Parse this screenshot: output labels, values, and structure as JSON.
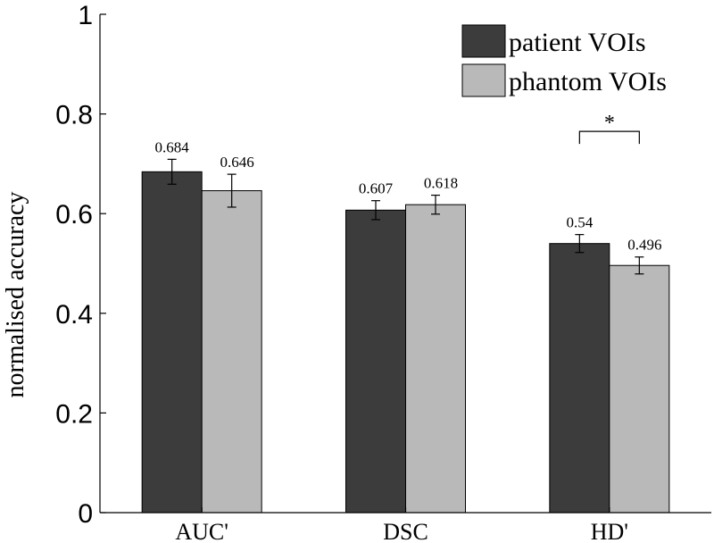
{
  "chart_data": {
    "type": "bar",
    "title": "",
    "xlabel": "",
    "ylabel": "normalised accuracy",
    "ylim": [
      0,
      1
    ],
    "yticks": [
      0,
      0.2,
      0.4,
      0.6,
      0.8,
      1
    ],
    "ytick_labels": [
      "0",
      "0.2",
      "0.4",
      "0.6",
      "0.8",
      "1"
    ],
    "categories": [
      "AUC'",
      "DSC",
      "HD'"
    ],
    "series": [
      {
        "name": "patient VOIs",
        "color": "#3c3c3c",
        "values": [
          0.684,
          0.607,
          0.54
        ],
        "value_labels": [
          "0.684",
          "0.607",
          "0.54"
        ],
        "errors": [
          0.025,
          0.019,
          0.018
        ]
      },
      {
        "name": "phantom VOIs",
        "color": "#b9b9b9",
        "values": [
          0.646,
          0.618,
          0.496
        ],
        "value_labels": [
          "0.646",
          "0.618",
          "0.496"
        ],
        "errors": [
          0.033,
          0.019,
          0.017
        ]
      }
    ],
    "legend_position": "top-right",
    "grid": false,
    "annotations": [
      {
        "type": "significance",
        "category_index": 2,
        "text": "*",
        "y": 0.765
      }
    ]
  }
}
